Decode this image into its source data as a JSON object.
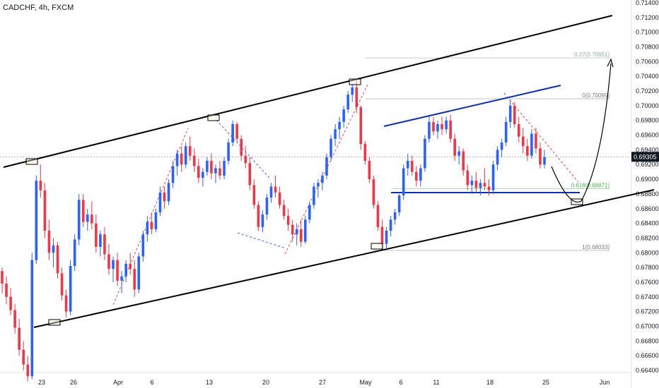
{
  "chart_data": {
    "type": "candlestick",
    "title": "CADCHF, 4h, FXCM",
    "symbol": "CADCHF",
    "timeframe": "4h",
    "source": "FXCM",
    "ylim": [
      0.664,
      0.715
    ],
    "y_ticks": [
      "0.71400",
      "0.71200",
      "0.71000",
      "0.70800",
      "0.70600",
      "0.70400",
      "0.70200",
      "0.70000",
      "0.69800",
      "0.69600",
      "0.69400",
      "0.69200",
      "0.69000",
      "0.68800",
      "0.68600",
      "0.68400",
      "0.68200",
      "0.68000",
      "0.67800",
      "0.67600",
      "0.67400",
      "0.67200",
      "0.67000",
      "0.66800",
      "0.66600",
      "0.66400"
    ],
    "x_ticks": [
      "23",
      "26",
      "Apr",
      "6",
      "13",
      "20",
      "27",
      "May",
      "6",
      "11",
      "18",
      "25",
      "Jun"
    ],
    "last_price": "0.69305",
    "colors": {
      "up": "#2962ff",
      "down": "#f23645",
      "channel": "#000000",
      "wedge": "#0c2fb5"
    },
    "fib_levels": [
      {
        "label": "0.27(0.70651)",
        "value": 0.70651,
        "color": "#90a4ae"
      },
      {
        "label": "0(0.70095)",
        "value": 0.70095,
        "color": "#787b86"
      },
      {
        "label": "0.618(0.68871)",
        "value": 0.68871,
        "color": "#4caf50"
      },
      {
        "label": "1(0.68033)",
        "value": 0.68033,
        "color": "#787b86"
      }
    ],
    "candles": [
      [
        0.6775,
        0.678,
        0.6745,
        0.6758
      ],
      [
        0.6758,
        0.6768,
        0.673,
        0.674
      ],
      [
        0.674,
        0.6752,
        0.6715,
        0.6722
      ],
      [
        0.6722,
        0.673,
        0.669,
        0.6698
      ],
      [
        0.6698,
        0.671,
        0.666,
        0.6668
      ],
      [
        0.6668,
        0.668,
        0.664,
        0.6648
      ],
      [
        0.6648,
        0.666,
        0.6625,
        0.6632
      ],
      [
        0.6632,
        0.68,
        0.6628,
        0.679
      ],
      [
        0.679,
        0.6905,
        0.6785,
        0.6898
      ],
      [
        0.6898,
        0.692,
        0.6875,
        0.6885
      ],
      [
        0.6885,
        0.6895,
        0.682,
        0.683
      ],
      [
        0.683,
        0.6845,
        0.679,
        0.68
      ],
      [
        0.68,
        0.682,
        0.678,
        0.681
      ],
      [
        0.681,
        0.6815,
        0.6765,
        0.6772
      ],
      [
        0.6772,
        0.678,
        0.6735,
        0.6742
      ],
      [
        0.6742,
        0.675,
        0.6712,
        0.672
      ],
      [
        0.672,
        0.679,
        0.6715,
        0.6782
      ],
      [
        0.6782,
        0.6825,
        0.6775,
        0.6818
      ],
      [
        0.6818,
        0.688,
        0.681,
        0.6872
      ],
      [
        0.6872,
        0.688,
        0.6835,
        0.6842
      ],
      [
        0.6842,
        0.686,
        0.683,
        0.6852
      ],
      [
        0.6852,
        0.687,
        0.6832,
        0.684
      ],
      [
        0.684,
        0.6852,
        0.68,
        0.6808
      ],
      [
        0.6808,
        0.683,
        0.6795,
        0.6825
      ],
      [
        0.6825,
        0.6835,
        0.679,
        0.6798
      ],
      [
        0.6798,
        0.6812,
        0.677,
        0.6778
      ],
      [
        0.6778,
        0.6795,
        0.676,
        0.679
      ],
      [
        0.679,
        0.68,
        0.6755,
        0.6762
      ],
      [
        0.6762,
        0.6775,
        0.6745,
        0.6768
      ],
      [
        0.6768,
        0.679,
        0.676,
        0.6785
      ],
      [
        0.6785,
        0.68,
        0.677,
        0.6778
      ],
      [
        0.6778,
        0.679,
        0.674,
        0.675
      ],
      [
        0.675,
        0.68,
        0.6745,
        0.6795
      ],
      [
        0.6795,
        0.683,
        0.6788,
        0.6825
      ],
      [
        0.6825,
        0.685,
        0.6815,
        0.6842
      ],
      [
        0.6842,
        0.6855,
        0.6825,
        0.6832
      ],
      [
        0.6832,
        0.686,
        0.6828,
        0.6855
      ],
      [
        0.6855,
        0.689,
        0.685,
        0.6882
      ],
      [
        0.6882,
        0.689,
        0.686,
        0.687
      ],
      [
        0.687,
        0.69,
        0.6865,
        0.6895
      ],
      [
        0.6895,
        0.6925,
        0.6888,
        0.6918
      ],
      [
        0.6918,
        0.694,
        0.6905,
        0.6935
      ],
      [
        0.6935,
        0.6945,
        0.691,
        0.692
      ],
      [
        0.692,
        0.695,
        0.6915,
        0.6945
      ],
      [
        0.6945,
        0.6958,
        0.6925,
        0.6932
      ],
      [
        0.6932,
        0.6942,
        0.691,
        0.6918
      ],
      [
        0.6918,
        0.6928,
        0.6895,
        0.6902
      ],
      [
        0.6902,
        0.6915,
        0.689,
        0.691
      ],
      [
        0.691,
        0.693,
        0.6905,
        0.6925
      ],
      [
        0.6925,
        0.6935,
        0.69,
        0.6908
      ],
      [
        0.6908,
        0.692,
        0.6895,
        0.6915
      ],
      [
        0.6915,
        0.6925,
        0.69,
        0.6905
      ],
      [
        0.6905,
        0.693,
        0.69,
        0.6925
      ],
      [
        0.6925,
        0.6955,
        0.692,
        0.695
      ],
      [
        0.695,
        0.698,
        0.6945,
        0.6975
      ],
      [
        0.6975,
        0.6978,
        0.695,
        0.6955
      ],
      [
        0.6955,
        0.696,
        0.6925,
        0.6932
      ],
      [
        0.6932,
        0.6945,
        0.6915,
        0.6922
      ],
      [
        0.6922,
        0.693,
        0.6885,
        0.6892
      ],
      [
        0.6892,
        0.69,
        0.686,
        0.6865
      ],
      [
        0.6865,
        0.687,
        0.683,
        0.6835
      ],
      [
        0.6835,
        0.6858,
        0.6828,
        0.6852
      ],
      [
        0.6852,
        0.688,
        0.6845,
        0.6875
      ],
      [
        0.6875,
        0.6895,
        0.6868,
        0.689
      ],
      [
        0.689,
        0.6905,
        0.6875,
        0.6882
      ],
      [
        0.6882,
        0.689,
        0.686,
        0.6865
      ],
      [
        0.6865,
        0.6872,
        0.6845,
        0.685
      ],
      [
        0.685,
        0.686,
        0.683,
        0.6838
      ],
      [
        0.6838,
        0.6845,
        0.6815,
        0.6825
      ],
      [
        0.6825,
        0.684,
        0.681,
        0.6832
      ],
      [
        0.6832,
        0.6845,
        0.6808,
        0.6815
      ],
      [
        0.6815,
        0.685,
        0.6812,
        0.6845
      ],
      [
        0.6845,
        0.687,
        0.684,
        0.6865
      ],
      [
        0.6865,
        0.6895,
        0.686,
        0.689
      ],
      [
        0.689,
        0.69,
        0.6875,
        0.6895
      ],
      [
        0.6895,
        0.691,
        0.6885,
        0.6905
      ],
      [
        0.6905,
        0.6935,
        0.69,
        0.693
      ],
      [
        0.693,
        0.696,
        0.6925,
        0.6955
      ],
      [
        0.6955,
        0.6975,
        0.6945,
        0.6968
      ],
      [
        0.6968,
        0.6985,
        0.6955,
        0.6978
      ],
      [
        0.6978,
        0.7,
        0.697,
        0.6995
      ],
      [
        0.6995,
        0.702,
        0.699,
        0.7015
      ],
      [
        0.7015,
        0.703,
        0.7005,
        0.7025
      ],
      [
        0.7025,
        0.7035,
        0.699,
        0.6998
      ],
      [
        0.6998,
        0.7,
        0.694,
        0.6948
      ],
      [
        0.6948,
        0.6952,
        0.692,
        0.6925
      ],
      [
        0.6925,
        0.693,
        0.6895,
        0.69
      ],
      [
        0.69,
        0.6905,
        0.686,
        0.6865
      ],
      [
        0.6865,
        0.687,
        0.683,
        0.6835
      ],
      [
        0.6835,
        0.6845,
        0.6805,
        0.6812
      ],
      [
        0.6812,
        0.6835,
        0.6805,
        0.683
      ],
      [
        0.683,
        0.685,
        0.6822,
        0.6845
      ],
      [
        0.6845,
        0.686,
        0.6838,
        0.6855
      ],
      [
        0.6855,
        0.688,
        0.685,
        0.6878
      ],
      [
        0.6878,
        0.692,
        0.6872,
        0.6915
      ],
      [
        0.6915,
        0.6935,
        0.6905,
        0.6925
      ],
      [
        0.6925,
        0.6932,
        0.6905,
        0.691
      ],
      [
        0.691,
        0.6918,
        0.689,
        0.6898
      ],
      [
        0.6898,
        0.692,
        0.689,
        0.6915
      ],
      [
        0.6915,
        0.696,
        0.691,
        0.6955
      ],
      [
        0.6955,
        0.6985,
        0.695,
        0.6978
      ],
      [
        0.6978,
        0.6985,
        0.696,
        0.6965
      ],
      [
        0.6965,
        0.698,
        0.6955,
        0.6975
      ],
      [
        0.6975,
        0.6985,
        0.696,
        0.6968
      ],
      [
        0.6968,
        0.6985,
        0.6962,
        0.698
      ],
      [
        0.698,
        0.6988,
        0.695,
        0.6955
      ],
      [
        0.6955,
        0.6962,
        0.6925,
        0.6932
      ],
      [
        0.6932,
        0.6945,
        0.692,
        0.6938
      ],
      [
        0.6938,
        0.6942,
        0.6905,
        0.6912
      ],
      [
        0.6912,
        0.692,
        0.6885,
        0.6892
      ],
      [
        0.6892,
        0.6905,
        0.688,
        0.6898
      ],
      [
        0.6898,
        0.691,
        0.6882,
        0.6888
      ],
      [
        0.6888,
        0.69,
        0.6878,
        0.6895
      ],
      [
        0.6895,
        0.6915,
        0.6885,
        0.689
      ],
      [
        0.689,
        0.69,
        0.6878,
        0.6885
      ],
      [
        0.6885,
        0.6925,
        0.688,
        0.692
      ],
      [
        0.692,
        0.6945,
        0.6912,
        0.694
      ],
      [
        0.694,
        0.6955,
        0.693,
        0.695
      ],
      [
        0.695,
        0.6985,
        0.6945,
        0.6978
      ],
      [
        0.6978,
        0.7008,
        0.697,
        0.7
      ],
      [
        0.7,
        0.7005,
        0.697,
        0.6975
      ],
      [
        0.6975,
        0.6985,
        0.695,
        0.6958
      ],
      [
        0.6958,
        0.697,
        0.6935,
        0.6945
      ],
      [
        0.6945,
        0.6955,
        0.6925,
        0.6932
      ],
      [
        0.6932,
        0.6968,
        0.6928,
        0.6962
      ],
      [
        0.6962,
        0.697,
        0.6935,
        0.6942
      ],
      [
        0.6942,
        0.695,
        0.6915,
        0.692
      ],
      [
        0.692,
        0.694,
        0.6915,
        0.693
      ]
    ]
  }
}
